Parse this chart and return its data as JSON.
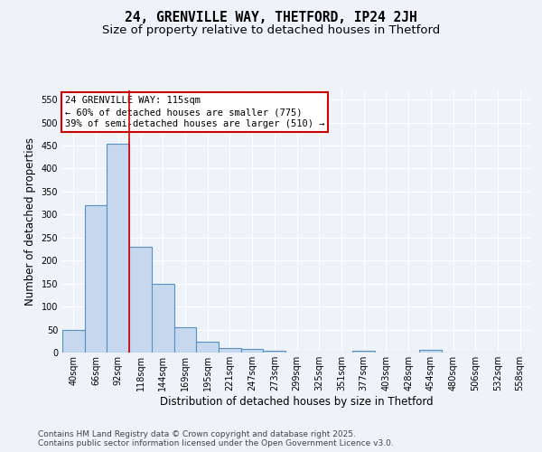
{
  "title": "24, GRENVILLE WAY, THETFORD, IP24 2JH",
  "subtitle": "Size of property relative to detached houses in Thetford",
  "xlabel": "Distribution of detached houses by size in Thetford",
  "ylabel": "Number of detached properties",
  "categories": [
    "40sqm",
    "66sqm",
    "92sqm",
    "118sqm",
    "144sqm",
    "169sqm",
    "195sqm",
    "221sqm",
    "247sqm",
    "273sqm",
    "299sqm",
    "325sqm",
    "351sqm",
    "377sqm",
    "403sqm",
    "428sqm",
    "454sqm",
    "480sqm",
    "506sqm",
    "532sqm",
    "558sqm"
  ],
  "values": [
    50,
    320,
    455,
    230,
    150,
    55,
    23,
    10,
    8,
    4,
    0,
    0,
    0,
    4,
    0,
    0,
    5,
    0,
    0,
    0,
    0
  ],
  "bar_color": "#c5d8ed",
  "bar_edge_color": "#5a90c0",
  "bar_edge_width": 0.8,
  "vline_color": "#cc0000",
  "annotation_text": "24 GRENVILLE WAY: 115sqm\n← 60% of detached houses are smaller (775)\n39% of semi-detached houses are larger (510) →",
  "annotation_box_color": "#cc0000",
  "background_color": "#eef2f9",
  "grid_color": "#ffffff",
  "footer_text": "Contains HM Land Registry data © Crown copyright and database right 2025.\nContains public sector information licensed under the Open Government Licence v3.0.",
  "ylim": [
    0,
    570
  ],
  "yticks": [
    0,
    50,
    100,
    150,
    200,
    250,
    300,
    350,
    400,
    450,
    500,
    550
  ],
  "title_fontsize": 10.5,
  "subtitle_fontsize": 9.5,
  "axis_label_fontsize": 8.5,
  "tick_fontsize": 7,
  "annotation_fontsize": 7.5,
  "footer_fontsize": 6.5
}
